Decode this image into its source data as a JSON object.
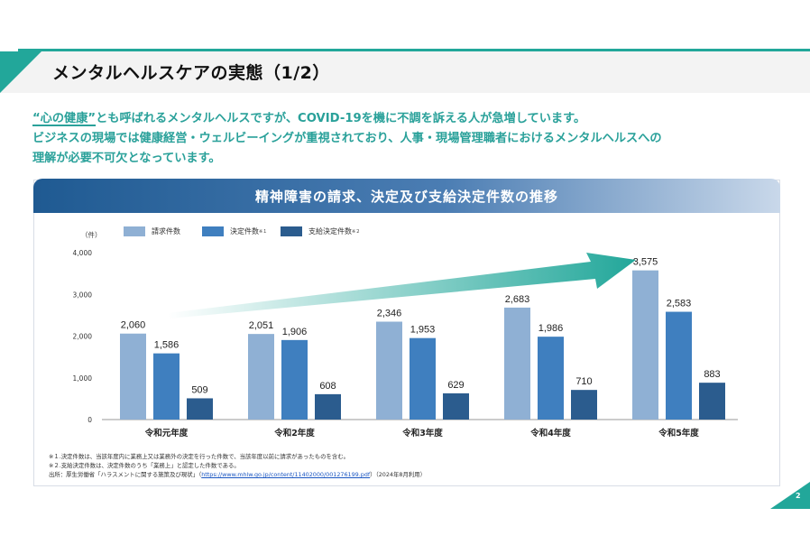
{
  "page": {
    "title": "メンタルヘルスケアの実態（1/2）",
    "number": "2",
    "accent_color": "#22a79a"
  },
  "lead": {
    "line1_kw": "“心の健康”",
    "line1_rest": "とも呼ばれるメンタルヘルスですが、COVID-19を機に不調を訴える人が急増しています。",
    "line2": "ビジネスの現場では健康経営・ウェルビーイングが重視されており、人事・現場管理職者におけるメンタルヘルスへの",
    "line3": "理解が必要不可欠となっています。"
  },
  "chart_data": {
    "type": "bar",
    "title": "精神障害の請求、決定及び支給決定件数の推移",
    "ylabel": "（件）",
    "ylim": [
      0,
      4000
    ],
    "yticks": [
      "0",
      "1,000",
      "2,000",
      "3,000",
      "4,000"
    ],
    "categories": [
      "令和元年度",
      "令和2年度",
      "令和3年度",
      "令和4年度",
      "令和5年度"
    ],
    "series": [
      {
        "name": "請求件数",
        "sup": "",
        "color": "#8fb0d4",
        "values": [
          2060,
          2051,
          2346,
          2683,
          3575
        ],
        "labels": [
          "2,060",
          "2,051",
          "2,346",
          "2,683",
          "3,575"
        ]
      },
      {
        "name": "決定件数",
        "sup": "※１",
        "color": "#3f7fbf",
        "values": [
          1586,
          1906,
          1953,
          1986,
          2583
        ],
        "labels": [
          "1,586",
          "1,906",
          "1,953",
          "1,986",
          "2,583"
        ]
      },
      {
        "name": "支給決定件数",
        "sup": "※２",
        "color": "#2b5c8e",
        "values": [
          509,
          608,
          629,
          710,
          883
        ],
        "labels": [
          "509",
          "608",
          "629",
          "710",
          "883"
        ]
      }
    ],
    "arrow_color": "#22a79a",
    "grid": false,
    "legend": "top-left"
  },
  "notes": {
    "note1": "※１.決定件数は、当該年度内に業務上又は業務外の決定を行った件数で、当該年度以前に請求があったものを含む。",
    "note2": "※２.支給決定件数は、決定件数のうち「業務上」と認定した件数である。",
    "source_prefix": "出所：厚生労働省「ハラスメントに関する施策及び現状」（",
    "source_link": "https://www.mhlw.go.jp/content/11402000/001276199.pdf",
    "source_suffix": "）（2024年8月利用）"
  }
}
